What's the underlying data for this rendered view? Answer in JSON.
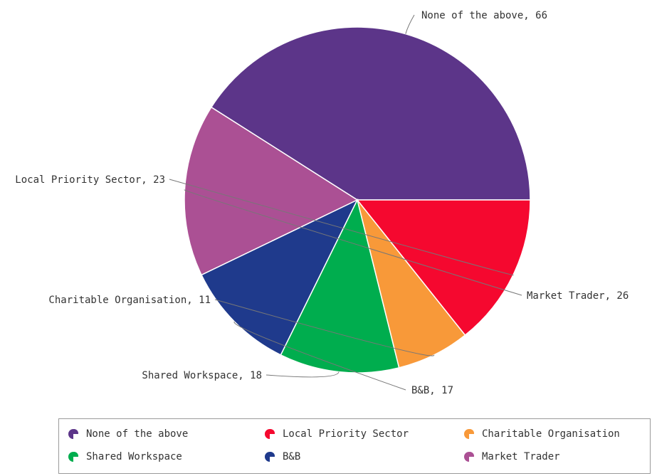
{
  "chart_data": {
    "type": "pie",
    "slices": [
      {
        "label": "None of the above",
        "value": 66,
        "color": "#5c3589"
      },
      {
        "label": "Market Trader",
        "value": 26,
        "color": "#ab5094"
      },
      {
        "label": "B&B",
        "value": 17,
        "color": "#1f3a8c"
      },
      {
        "label": "Shared Workspace",
        "value": 18,
        "color": "#00ad4e"
      },
      {
        "label": "Charitable Organisation",
        "value": 11,
        "color": "#f89939"
      },
      {
        "label": "Local Priority Sector",
        "value": 23,
        "color": "#f5082f"
      }
    ],
    "data_labels": [
      "None of the above, 66",
      "Market Trader, 26",
      "B&B, 17",
      "Shared Workspace, 18",
      "Charitable Organisation, 11",
      "Local Priority Sector, 23"
    ],
    "legend": {
      "position": "bottom",
      "entries": [
        {
          "label": "None of the above",
          "color": "#5c3589",
          "icon": "pie-icon"
        },
        {
          "label": "Local Priority Sector",
          "color": "#f5082f",
          "icon": "pie-icon"
        },
        {
          "label": "Charitable Organisation",
          "color": "#f89939",
          "icon": "pie-icon"
        },
        {
          "label": "Shared Workspace",
          "color": "#00ad4e",
          "icon": "pie-icon"
        },
        {
          "label": "B&B",
          "color": "#1f3a8c",
          "icon": "pie-icon"
        },
        {
          "label": "Market Trader",
          "color": "#ab5094",
          "icon": "pie-icon"
        }
      ]
    }
  }
}
